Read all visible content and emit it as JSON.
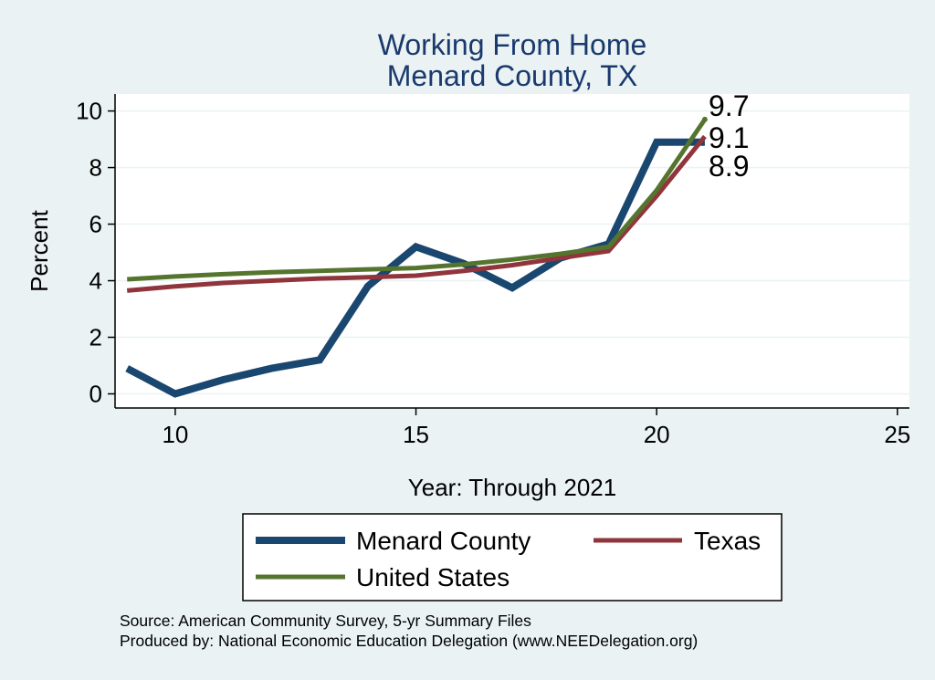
{
  "chart_data": {
    "type": "line",
    "title": "Working From Home",
    "subtitle": "Menard County, TX",
    "xlabel": "Year: Through 2021",
    "ylabel": "Percent",
    "xlim": [
      8.75,
      25.25
    ],
    "ylim": [
      -0.5,
      10.6
    ],
    "xticks": [
      10,
      15,
      20,
      25
    ],
    "yticks": [
      0,
      2,
      4,
      6,
      8,
      10
    ],
    "grid": true,
    "legend_position": "bottom",
    "series": [
      {
        "name": "Menard County",
        "color": "#1a476f",
        "x": [
          9,
          10,
          11,
          12,
          13,
          14,
          15,
          16,
          17,
          18,
          19,
          20,
          21
        ],
        "y": [
          0.9,
          0.0,
          0.5,
          0.9,
          1.2,
          3.8,
          5.2,
          4.6,
          3.75,
          4.8,
          5.3,
          8.9,
          8.9
        ],
        "end_label": "8.9"
      },
      {
        "name": "Texas",
        "color": "#90353b",
        "x": [
          9,
          10,
          11,
          12,
          13,
          14,
          15,
          16,
          17,
          18,
          19,
          20,
          21
        ],
        "y": [
          3.65,
          3.8,
          3.92,
          4.0,
          4.08,
          4.12,
          4.18,
          4.35,
          4.55,
          4.8,
          5.05,
          7.0,
          9.1
        ],
        "end_label": "9.1"
      },
      {
        "name": "United States",
        "color": "#55752f",
        "x": [
          9,
          10,
          11,
          12,
          13,
          14,
          15,
          16,
          17,
          18,
          19,
          20,
          21
        ],
        "y": [
          4.05,
          4.15,
          4.23,
          4.3,
          4.35,
          4.4,
          4.45,
          4.58,
          4.75,
          4.95,
          5.2,
          7.2,
          9.7
        ],
        "end_label": "9.7"
      }
    ],
    "source_lines": [
      "Source: American Community Survey, 5-yr Summary Files",
      "Produced by: National Economic Education Delegation (www.NEEDelegation.org)"
    ]
  }
}
